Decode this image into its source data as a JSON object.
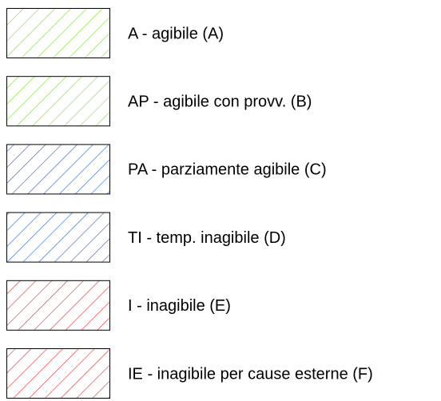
{
  "legend": {
    "items": [
      {
        "label": "A - agibile (A)",
        "color": "#7ddc2a"
      },
      {
        "label": "AP - agibile con provv. (B)",
        "color": "#7ddc2a"
      },
      {
        "label": "PA - parziamente agibile (C)",
        "color": "#1f5fcf"
      },
      {
        "label": "TI - temp. inagibile (D)",
        "color": "#1f5fcf"
      },
      {
        "label": "I - inagibile (E)",
        "color": "#e3262d"
      },
      {
        "label": "IE - inagibile per cause esterne (F)",
        "color": "#e3262d"
      }
    ]
  }
}
